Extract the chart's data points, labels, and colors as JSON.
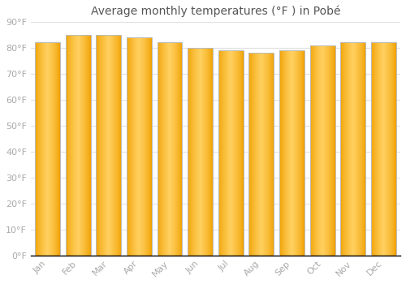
{
  "title": "Average monthly temperatures (°F ) in Pobé",
  "months": [
    "Jan",
    "Feb",
    "Mar",
    "Apr",
    "May",
    "Jun",
    "Jul",
    "Aug",
    "Sep",
    "Oct",
    "Nov",
    "Dec"
  ],
  "values": [
    82,
    85,
    85,
    84,
    82,
    80,
    79,
    78,
    79,
    81,
    82,
    82
  ],
  "ylim": [
    0,
    90
  ],
  "yticks": [
    0,
    10,
    20,
    30,
    40,
    50,
    60,
    70,
    80,
    90
  ],
  "ytick_labels": [
    "0°F",
    "10°F",
    "20°F",
    "30°F",
    "40°F",
    "50°F",
    "60°F",
    "70°F",
    "80°F",
    "90°F"
  ],
  "bar_color_center": "#FFD060",
  "bar_color_edge": "#F5A800",
  "bar_outline_color": "#CCCCCC",
  "background_color": "#FFFFFF",
  "grid_color": "#E0E0E0",
  "title_fontsize": 10,
  "tick_fontsize": 8,
  "tick_color": "#AAAAAA",
  "title_color": "#555555"
}
